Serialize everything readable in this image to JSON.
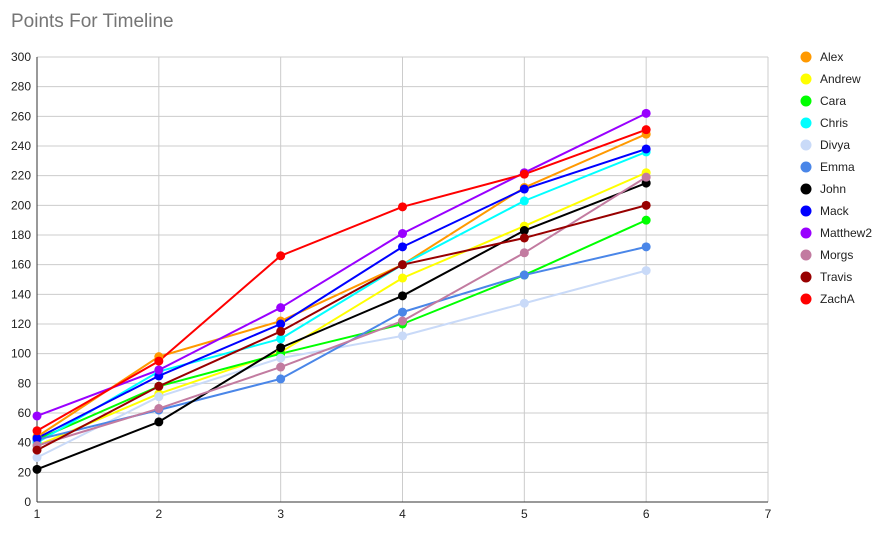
{
  "chart_data": {
    "type": "line",
    "title": "Points For Timeline",
    "xlabel": "",
    "ylabel": "",
    "xlim": [
      1,
      7
    ],
    "ylim": [
      0,
      300
    ],
    "x_ticks": [
      1,
      2,
      3,
      4,
      5,
      6,
      7
    ],
    "y_ticks": [
      0,
      20,
      40,
      60,
      80,
      100,
      120,
      140,
      160,
      180,
      200,
      220,
      240,
      260,
      280,
      300
    ],
    "grid": true,
    "legend_position": "right",
    "x": [
      1,
      2,
      3,
      4,
      5,
      6
    ],
    "series": [
      {
        "name": "Alex",
        "color": "#ff9900",
        "values": [
          44,
          98,
          122,
          160,
          212,
          248
        ]
      },
      {
        "name": "Andrew",
        "color": "#ffff00",
        "values": [
          38,
          73,
          101,
          151,
          186,
          222
        ]
      },
      {
        "name": "Cara",
        "color": "#00ff00",
        "values": [
          42,
          78,
          100,
          120,
          153,
          190
        ]
      },
      {
        "name": "Chris",
        "color": "#00ffff",
        "values": [
          40,
          88,
          110,
          160,
          203,
          236
        ]
      },
      {
        "name": "Divya",
        "color": "#c9daf8",
        "values": [
          30,
          71,
          97,
          112,
          134,
          156
        ]
      },
      {
        "name": "Emma",
        "color": "#4a86e8",
        "values": [
          42,
          62,
          83,
          128,
          153,
          172
        ]
      },
      {
        "name": "John",
        "color": "#000000",
        "values": [
          22,
          54,
          104,
          139,
          183,
          215
        ]
      },
      {
        "name": "Mack",
        "color": "#0000ff",
        "values": [
          43,
          85,
          120,
          172,
          211,
          238
        ]
      },
      {
        "name": "Matthew2",
        "color": "#9900ff",
        "values": [
          58,
          89,
          131,
          181,
          222,
          262
        ]
      },
      {
        "name": "Morgs",
        "color": "#c27ba0",
        "values": [
          38,
          63,
          91,
          122,
          168,
          219
        ]
      },
      {
        "name": "Travis",
        "color": "#980000",
        "values": [
          35,
          78,
          115,
          160,
          178,
          200
        ]
      },
      {
        "name": "ZachA",
        "color": "#ff0000",
        "values": [
          48,
          95,
          166,
          199,
          221,
          251
        ]
      }
    ]
  }
}
